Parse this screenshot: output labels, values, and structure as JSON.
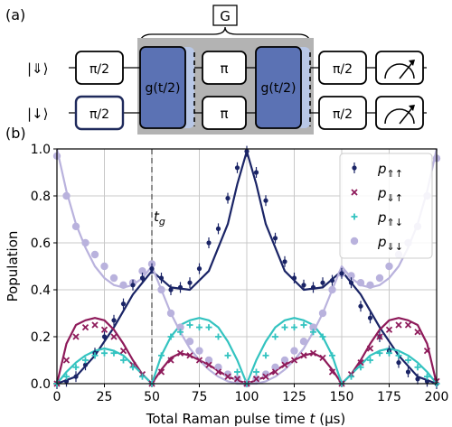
{
  "panel_a": {
    "label": "(a)",
    "group_label": "G",
    "rows": [
      {
        "state": "|⇓⟩",
        "gates": [
          "π/2",
          "g(t/2)",
          "π",
          "g(t/2)",
          "π/2"
        ],
        "end": "measure-icon"
      },
      {
        "state": "|↓⟩",
        "gates": [
          "π/2",
          "g(t/2)",
          "π",
          "g(t/2)",
          "π/2"
        ],
        "end": "measure-icon"
      }
    ],
    "colors": {
      "box_gray": "#b3b3b3",
      "gate_blue": "#5b72b4",
      "gate_blue_light": "#b8c7e6",
      "first_box_border": "#1f2a5c"
    }
  },
  "panel_b": {
    "label": "(b)",
    "annotation": "t",
    "annotation_sub": "g",
    "legend": [
      {
        "sym": "p",
        "sub": "⇑↑",
        "color": "#1a2466",
        "marker": "dot"
      },
      {
        "sym": "p",
        "sub": "⇓↑",
        "color": "#8e1a5a",
        "marker": "x"
      },
      {
        "sym": "p",
        "sub": "⇑↓",
        "color": "#33c3c0",
        "marker": "plus"
      },
      {
        "sym": "p",
        "sub": "⇓↓",
        "color": "#b9b2dd",
        "marker": "big-dot"
      }
    ]
  },
  "chart_data": {
    "type": "scatter",
    "xlabel": "Total Raman pulse time",
    "xlabel_var": "t",
    "xlabel_unit": "(μs)",
    "ylabel": "Population",
    "xlim": [
      0,
      200
    ],
    "ylim": [
      0,
      1.0
    ],
    "xticks": [
      "0",
      "25",
      "50",
      "75",
      "100",
      "125",
      "150",
      "175",
      "200"
    ],
    "yticks": [
      "0.0",
      "0.2",
      "0.4",
      "0.6",
      "0.8",
      "1.0"
    ],
    "grid": true,
    "legend_position": "top-right",
    "vline_x": 50,
    "series": [
      {
        "name": "p⇑↑",
        "color": "#1a2466",
        "marker": "dot",
        "x": [
          0,
          5,
          10,
          15,
          20,
          25,
          30,
          35,
          40,
          45,
          50,
          55,
          60,
          65,
          70,
          75,
          80,
          85,
          90,
          95,
          100,
          105,
          110,
          115,
          120,
          125,
          130,
          135,
          140,
          145,
          150,
          155,
          160,
          165,
          170,
          175,
          180,
          185,
          190,
          195,
          200
        ],
        "y": [
          0.0,
          0.01,
          0.03,
          0.08,
          0.13,
          0.2,
          0.27,
          0.34,
          0.42,
          0.45,
          0.49,
          0.45,
          0.4,
          0.41,
          0.43,
          0.49,
          0.6,
          0.66,
          0.79,
          0.92,
          0.99,
          0.9,
          0.78,
          0.62,
          0.52,
          0.45,
          0.42,
          0.41,
          0.43,
          0.44,
          0.47,
          0.43,
          0.33,
          0.28,
          0.2,
          0.14,
          0.09,
          0.05,
          0.02,
          0.01,
          0.0
        ],
        "fit_x": [
          0,
          10,
          20,
          30,
          40,
          50,
          60,
          70,
          80,
          90,
          95,
          100,
          105,
          110,
          120,
          130,
          140,
          150,
          160,
          170,
          180,
          190,
          200
        ],
        "fit_y": [
          0.0,
          0.03,
          0.12,
          0.24,
          0.38,
          0.48,
          0.41,
          0.4,
          0.48,
          0.68,
          0.85,
          0.99,
          0.85,
          0.68,
          0.48,
          0.4,
          0.41,
          0.48,
          0.38,
          0.24,
          0.12,
          0.03,
          0.0
        ]
      },
      {
        "name": "p⇓↑",
        "color": "#8e1a5a",
        "marker": "x",
        "x": [
          0,
          5,
          10,
          15,
          20,
          25,
          30,
          35,
          40,
          45,
          50,
          55,
          60,
          65,
          70,
          75,
          80,
          85,
          90,
          95,
          100,
          105,
          110,
          115,
          120,
          125,
          130,
          135,
          140,
          145,
          150,
          155,
          160,
          165,
          170,
          175,
          180,
          185,
          190,
          195,
          200
        ],
        "y": [
          0.0,
          0.1,
          0.2,
          0.24,
          0.25,
          0.23,
          0.2,
          0.14,
          0.08,
          0.04,
          0.0,
          0.05,
          0.1,
          0.13,
          0.12,
          0.1,
          0.08,
          0.05,
          0.03,
          0.02,
          0.0,
          0.02,
          0.03,
          0.05,
          0.08,
          0.1,
          0.12,
          0.13,
          0.11,
          0.05,
          0.0,
          0.04,
          0.09,
          0.15,
          0.2,
          0.23,
          0.25,
          0.25,
          0.22,
          0.14,
          0.01
        ],
        "fit_x": [
          0,
          5,
          10,
          15,
          20,
          25,
          30,
          35,
          40,
          45,
          50,
          55,
          60,
          65,
          70,
          80,
          90,
          100,
          110,
          120,
          130,
          135,
          140,
          145,
          150,
          155,
          160,
          165,
          170,
          175,
          180,
          185,
          190,
          195,
          200
        ],
        "fit_y": [
          0.0,
          0.17,
          0.25,
          0.27,
          0.28,
          0.27,
          0.23,
          0.17,
          0.1,
          0.04,
          0.0,
          0.06,
          0.11,
          0.13,
          0.12,
          0.08,
          0.03,
          0.0,
          0.03,
          0.08,
          0.12,
          0.13,
          0.11,
          0.06,
          0.0,
          0.04,
          0.1,
          0.17,
          0.23,
          0.27,
          0.28,
          0.27,
          0.25,
          0.17,
          0.0
        ]
      },
      {
        "name": "p⇑↓",
        "color": "#33c3c0",
        "marker": "plus",
        "x": [
          0,
          5,
          10,
          15,
          20,
          25,
          30,
          35,
          40,
          45,
          50,
          55,
          60,
          65,
          70,
          75,
          80,
          85,
          90,
          95,
          100,
          105,
          110,
          115,
          120,
          125,
          130,
          135,
          140,
          145,
          150,
          155,
          160,
          165,
          170,
          175,
          180,
          185,
          190,
          195,
          200
        ],
        "y": [
          0.0,
          0.03,
          0.07,
          0.1,
          0.12,
          0.13,
          0.13,
          0.1,
          0.07,
          0.03,
          0.0,
          0.12,
          0.2,
          0.22,
          0.25,
          0.24,
          0.24,
          0.2,
          0.12,
          0.05,
          0.0,
          0.05,
          0.12,
          0.2,
          0.24,
          0.24,
          0.25,
          0.22,
          0.2,
          0.12,
          0.0,
          0.03,
          0.07,
          0.1,
          0.13,
          0.13,
          0.12,
          0.1,
          0.07,
          0.03,
          0.0
        ],
        "fit_x": [
          0,
          5,
          10,
          15,
          20,
          25,
          30,
          35,
          40,
          45,
          50,
          55,
          60,
          65,
          70,
          75,
          80,
          85,
          90,
          95,
          100,
          105,
          110,
          115,
          120,
          125,
          130,
          135,
          140,
          145,
          150,
          155,
          160,
          165,
          170,
          175,
          180,
          185,
          190,
          195,
          200
        ],
        "fit_y": [
          0.0,
          0.05,
          0.09,
          0.12,
          0.14,
          0.15,
          0.14,
          0.12,
          0.08,
          0.04,
          0.0,
          0.12,
          0.2,
          0.25,
          0.27,
          0.28,
          0.27,
          0.24,
          0.18,
          0.1,
          0.0,
          0.1,
          0.18,
          0.24,
          0.27,
          0.28,
          0.27,
          0.25,
          0.2,
          0.12,
          0.0,
          0.04,
          0.08,
          0.12,
          0.14,
          0.15,
          0.14,
          0.12,
          0.09,
          0.05,
          0.0
        ]
      },
      {
        "name": "p⇓↓",
        "color": "#b9b2dd",
        "marker": "big-dot",
        "x": [
          0,
          5,
          10,
          15,
          20,
          25,
          30,
          35,
          40,
          45,
          50,
          55,
          60,
          65,
          70,
          75,
          80,
          85,
          90,
          95,
          100,
          105,
          110,
          115,
          120,
          125,
          130,
          135,
          140,
          145,
          150,
          155,
          160,
          165,
          170,
          175,
          180,
          185,
          190,
          195,
          200
        ],
        "y": [
          0.97,
          0.8,
          0.67,
          0.6,
          0.55,
          0.5,
          0.45,
          0.42,
          0.43,
          0.48,
          0.51,
          0.4,
          0.3,
          0.24,
          0.18,
          0.14,
          0.1,
          0.07,
          0.04,
          0.02,
          0.0,
          0.02,
          0.04,
          0.07,
          0.1,
          0.14,
          0.18,
          0.24,
          0.3,
          0.4,
          0.47,
          0.46,
          0.43,
          0.42,
          0.45,
          0.5,
          0.55,
          0.6,
          0.67,
          0.8,
          0.96
        ],
        "fit_x": [
          0,
          5,
          10,
          15,
          20,
          25,
          30,
          35,
          40,
          45,
          50,
          55,
          60,
          65,
          70,
          75,
          80,
          85,
          90,
          95,
          100,
          105,
          110,
          115,
          120,
          125,
          130,
          135,
          140,
          145,
          150,
          155,
          160,
          165,
          170,
          175,
          180,
          185,
          190,
          195,
          200
        ],
        "fit_y": [
          1.0,
          0.82,
          0.68,
          0.58,
          0.5,
          0.45,
          0.42,
          0.41,
          0.42,
          0.45,
          0.5,
          0.4,
          0.3,
          0.22,
          0.15,
          0.1,
          0.06,
          0.03,
          0.01,
          0.0,
          0.0,
          0.0,
          0.01,
          0.03,
          0.06,
          0.1,
          0.15,
          0.22,
          0.3,
          0.4,
          0.5,
          0.45,
          0.42,
          0.41,
          0.42,
          0.45,
          0.5,
          0.58,
          0.68,
          0.82,
          1.0
        ]
      }
    ]
  }
}
